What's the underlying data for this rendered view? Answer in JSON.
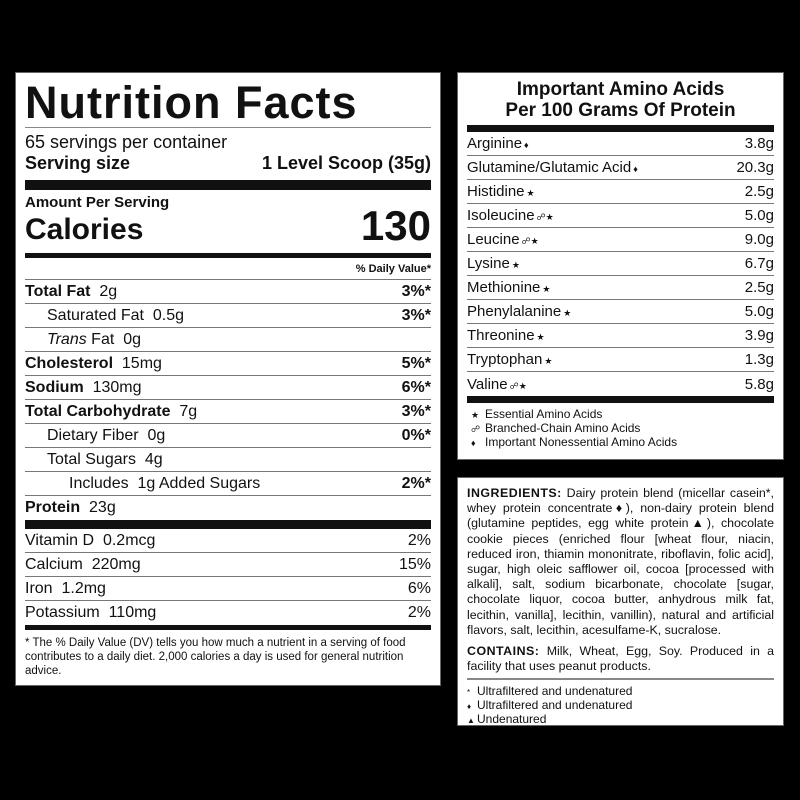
{
  "nutrition": {
    "title": "Nutrition Facts",
    "servings": "65 servings per container",
    "serving_size_label": "Serving size",
    "serving_size_value": "1 Level Scoop (35g)",
    "amount_per_serving": "Amount Per Serving",
    "calories_label": "Calories",
    "calories_value": "130",
    "dv_header": "% Daily Value*",
    "rows": [
      {
        "label": "Total Fat",
        "amount": "2g",
        "dv": "3%*",
        "bold": true,
        "indent": 0
      },
      {
        "label": "Saturated Fat",
        "amount": "0.5g",
        "dv": "3%*",
        "bold": false,
        "indent": 1
      },
      {
        "label": "Trans",
        "label2": "Fat",
        "amount": "0g",
        "dv": "",
        "bold": false,
        "indent": 1
      },
      {
        "label": "Cholesterol",
        "amount": "15mg",
        "dv": "5%*",
        "bold": true,
        "indent": 0
      },
      {
        "label": "Sodium",
        "amount": "130mg",
        "dv": "6%*",
        "bold": true,
        "indent": 0
      },
      {
        "label": "Total Carbohydrate",
        "amount": "7g",
        "dv": "3%*",
        "bold": true,
        "indent": 0
      },
      {
        "label": "Dietary Fiber",
        "amount": "0g",
        "dv": "0%*",
        "bold": false,
        "indent": 1
      },
      {
        "label": "Total Sugars",
        "amount": "4g",
        "dv": "",
        "bold": false,
        "indent": 1
      },
      {
        "label": "Includes",
        "amount": "1g Added Sugars",
        "dv": "2%*",
        "bold": false,
        "indent": 2
      },
      {
        "label": "Protein",
        "amount": "23g",
        "dv": "",
        "bold": true,
        "indent": 0
      }
    ],
    "vitamins": [
      {
        "label": "Vitamin D",
        "amount": "0.2mcg",
        "dv": "2%"
      },
      {
        "label": "Calcium",
        "amount": "220mg",
        "dv": "15%"
      },
      {
        "label": "Iron",
        "amount": "1.2mg",
        "dv": "6%"
      },
      {
        "label": "Potassium",
        "amount": "110mg",
        "dv": "2%"
      }
    ],
    "footnote": "* The % Daily Value (DV) tells you how much a nutrient in a serving of food contributes to a daily diet. 2,000 calories a day is used for general nutrition advice."
  },
  "amino": {
    "title_line1": "Important Amino Acids",
    "title_line2": "Per 100 Grams Of Protein",
    "rows": [
      {
        "name": "Arginine",
        "sym": "♦",
        "value": "3.8g"
      },
      {
        "name": "Glutamine/Glutamic Acid",
        "sym": "♦",
        "value": "20.3g"
      },
      {
        "name": "Histidine",
        "sym": "★",
        "value": "2.5g"
      },
      {
        "name": "Isoleucine",
        "sym": "☍★",
        "value": "5.0g"
      },
      {
        "name": "Leucine",
        "sym": "☍★",
        "value": "9.0g"
      },
      {
        "name": "Lysine",
        "sym": "★",
        "value": "6.7g"
      },
      {
        "name": "Methionine",
        "sym": "★",
        "value": "2.5g"
      },
      {
        "name": "Phenylalanine",
        "sym": "★",
        "value": "5.0g"
      },
      {
        "name": "Threonine",
        "sym": "★",
        "value": "3.9g"
      },
      {
        "name": "Tryptophan",
        "sym": "★",
        "value": "1.3g"
      },
      {
        "name": "Valine",
        "sym": "☍★",
        "value": "5.8g"
      }
    ],
    "legend": [
      {
        "sym": "★",
        "text": "Essential Amino Acids"
      },
      {
        "sym": "☍",
        "text": "Branched-Chain Amino Acids"
      },
      {
        "sym": "♦",
        "text": "Important Nonessential Amino Acids"
      }
    ]
  },
  "ingredients": {
    "heading": "INGREDIENTS:",
    "text": "Dairy protein blend (micellar casein*, whey protein concentrate♦), non-dairy protein blend (glutamine peptides, egg white protein▲), chocolate cookie pieces (enriched flour [wheat flour, niacin, reduced iron, thiamin mononitrate, riboflavin, folic acid], sugar, high oleic safflower oil, cocoa [processed with alkali], salt, sodium bicarbonate, chocolate [sugar, chocolate liquor, cocoa butter, anhydrous milk fat, lecithin, vanilla], lecithin, vanillin), natural and artificial flavors, salt, lecithin, acesulfame-K, sucralose.",
    "contains_heading": "CONTAINS:",
    "contains_text": "Milk, Wheat, Egg, Soy. Produced in a facility that uses peanut products.",
    "footnotes": [
      {
        "sym": "*",
        "text": "Ultrafiltered and undenatured"
      },
      {
        "sym": "♦",
        "text": "Ultrafiltered and undenatured"
      },
      {
        "sym": "▲",
        "text": "Undenatured"
      }
    ]
  }
}
